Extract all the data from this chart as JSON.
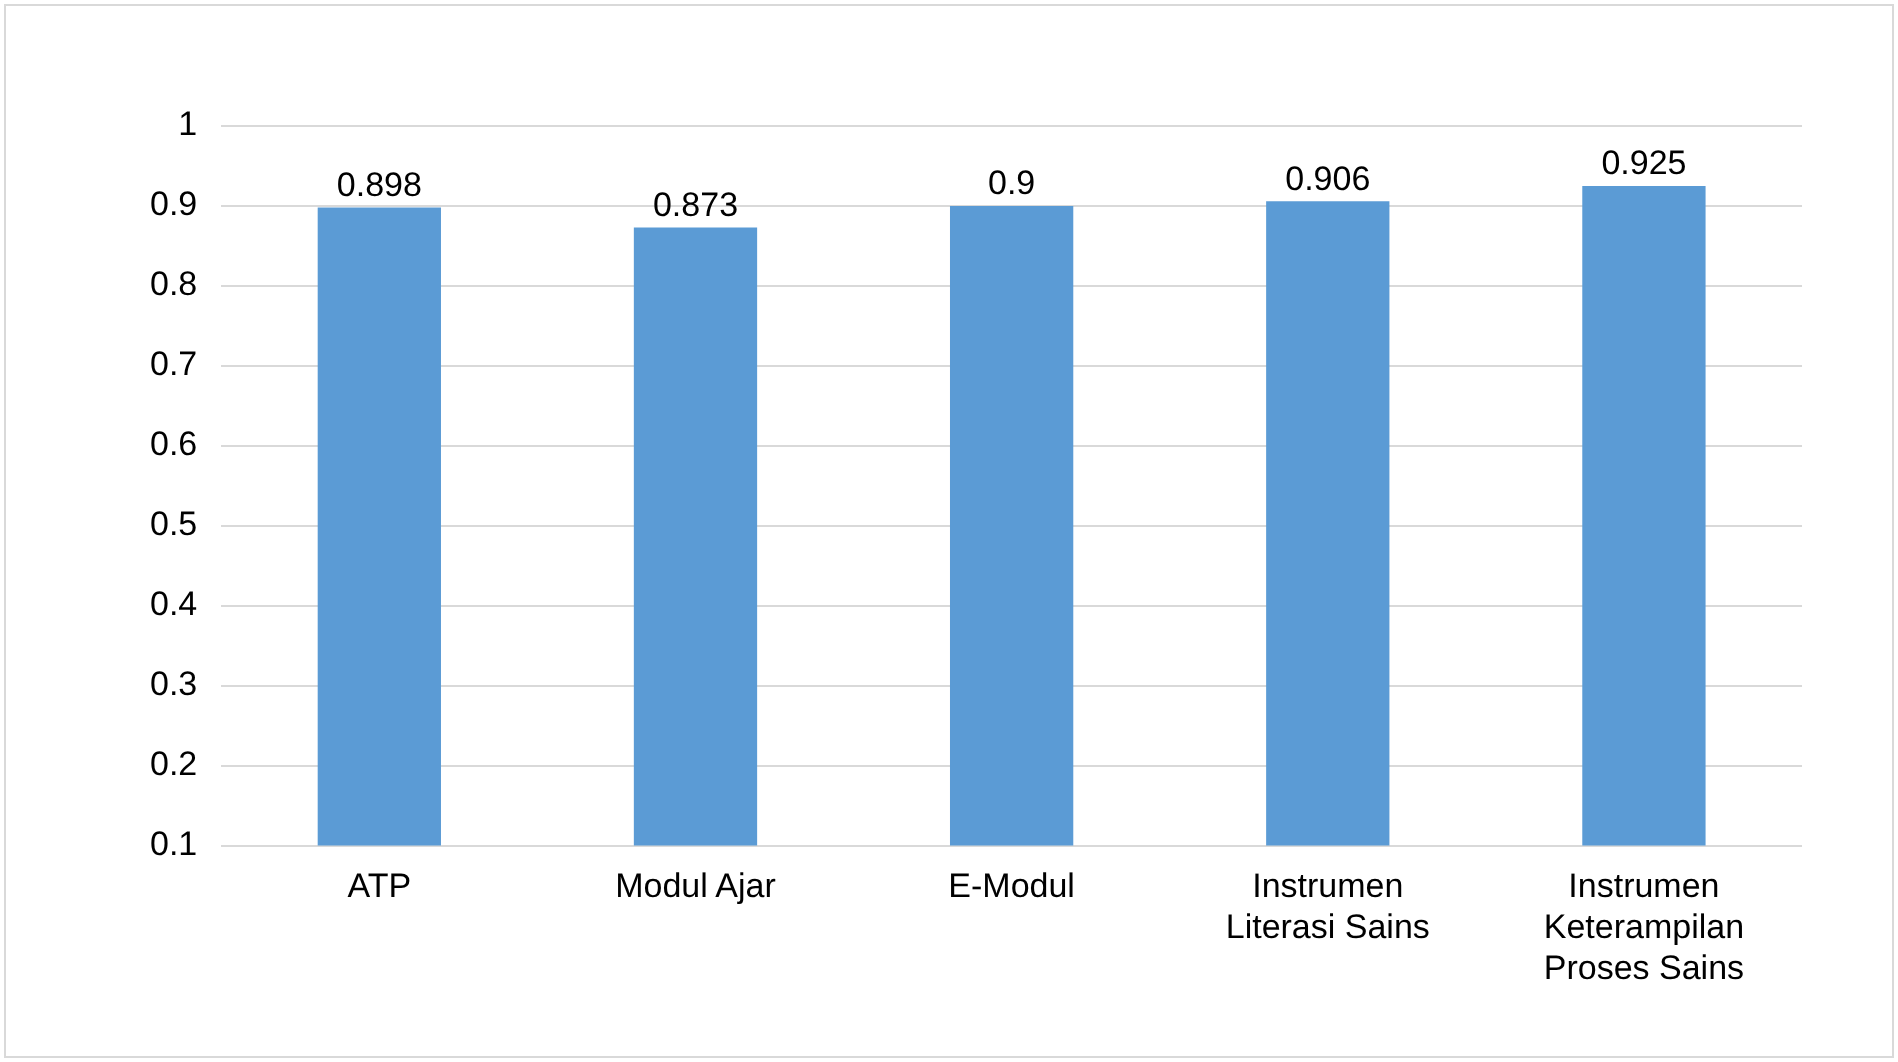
{
  "chart_data": {
    "type": "bar",
    "categories": [
      "ATP",
      "Modul Ajar",
      "E-Modul",
      "Instrumen Literasi Sains",
      "Instrumen Keterampilan Proses Sains"
    ],
    "values": [
      0.898,
      0.873,
      0.9,
      0.906,
      0.925
    ],
    "color": "#5b9bd5",
    "ylim": [
      0.1,
      1
    ],
    "yticks": [
      0.1,
      0.2,
      0.3,
      0.4,
      0.5,
      0.6,
      0.7,
      0.8,
      0.9,
      1
    ],
    "grid": "y",
    "legend": false,
    "data_labels": true
  }
}
